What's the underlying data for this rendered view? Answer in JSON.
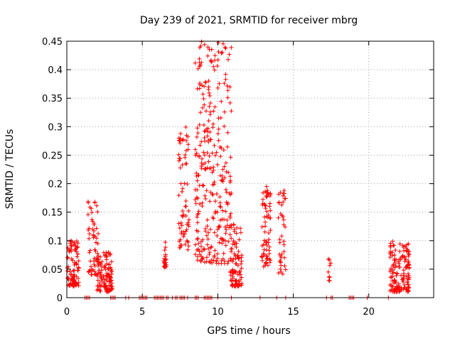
{
  "chart_data": {
    "type": "scatter",
    "title": "Day 239 of 2021, SRMTID for receiver mbrg",
    "xlabel": "GPS time / hours",
    "ylabel": "SRMTID / TECUs",
    "xlim": [
      0,
      24.3
    ],
    "ylim": [
      0,
      0.45
    ],
    "x_ticks": [
      0,
      5,
      10,
      15,
      20
    ],
    "x_tick_labels": [
      "0",
      "5",
      "10",
      "15",
      "20"
    ],
    "y_ticks": [
      0,
      0.05,
      0.1,
      0.15,
      0.2,
      0.25,
      0.3,
      0.35,
      0.4,
      0.45
    ],
    "y_tick_labels": [
      "0",
      "0.05",
      "0.1",
      "0.15",
      "0.2",
      "0.25",
      "0.3",
      "0.35",
      "0.4",
      "0.45"
    ],
    "grid": true,
    "marker": "+",
    "color": "#ff0000",
    "clusters": [
      {
        "x_range": [
          0.0,
          0.8
        ],
        "y_range": [
          0.02,
          0.1
        ],
        "count": 90
      },
      {
        "x_range": [
          1.4,
          2.1
        ],
        "y_range": [
          0.04,
          0.17
        ],
        "count": 60
      },
      {
        "x_range": [
          2.0,
          3.0
        ],
        "y_range": [
          0.01,
          0.08
        ],
        "count": 110
      },
      {
        "x_range": [
          6.4,
          6.6
        ],
        "y_range": [
          0.05,
          0.1
        ],
        "count": 20
      },
      {
        "x_range": [
          7.4,
          8.1
        ],
        "y_range": [
          0.08,
          0.3
        ],
        "count": 70
      },
      {
        "x_range": [
          8.5,
          10.9
        ],
        "y_range": [
          0.06,
          0.45
        ],
        "count": 300
      },
      {
        "x_range": [
          10.8,
          11.6
        ],
        "y_range": [
          0.02,
          0.13
        ],
        "count": 90
      },
      {
        "x_range": [
          12.9,
          13.5
        ],
        "y_range": [
          0.05,
          0.2
        ],
        "count": 70
      },
      {
        "x_range": [
          14.0,
          14.5
        ],
        "y_range": [
          0.04,
          0.19
        ],
        "count": 40
      },
      {
        "x_range": [
          17.3,
          17.5
        ],
        "y_range": [
          0.03,
          0.07
        ],
        "count": 10
      },
      {
        "x_range": [
          21.4,
          22.7
        ],
        "y_range": [
          0.01,
          0.1
        ],
        "count": 150
      }
    ],
    "zero_baseline_points": [
      1.2,
      1.3,
      1.4,
      1.5,
      2.9,
      3.0,
      3.1,
      3.2,
      3.9,
      4.1,
      4.8,
      4.9,
      5.0,
      5.1,
      5.2,
      5.3,
      5.8,
      5.9,
      6.0,
      6.1,
      6.2,
      6.3,
      6.4,
      6.6,
      6.7,
      7.0,
      7.2,
      7.3,
      7.5,
      7.6,
      7.7,
      7.8,
      8.0,
      8.5,
      8.6,
      8.7,
      9.1,
      9.2,
      9.3,
      9.4,
      9.5,
      9.6,
      10.0,
      10.9,
      12.8,
      13.9,
      14.5,
      17.2,
      17.5,
      17.6,
      18.7,
      18.8,
      18.9,
      19.0,
      19.9,
      21.3
    ]
  }
}
